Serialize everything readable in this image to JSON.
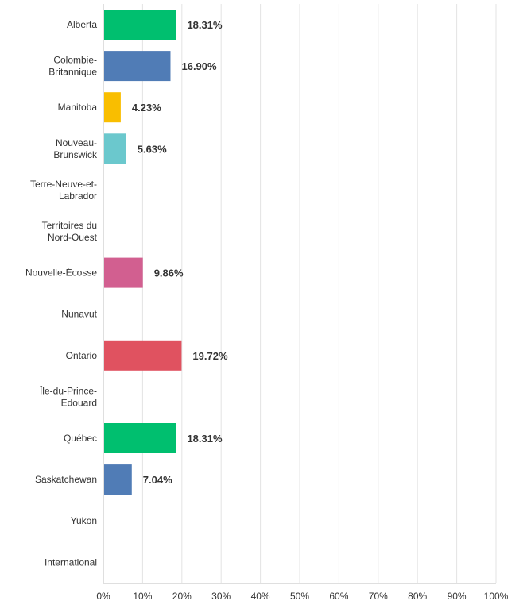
{
  "chart_data": {
    "type": "bar",
    "orientation": "horizontal",
    "categories": [
      "Alberta",
      "Colombie-\nBritannique",
      "Manitoba",
      "Nouveau-\nBrunswick",
      "Terre-Neuve-et-\nLabrador",
      "Territoires du\nNord-Ouest",
      "Nouvelle-Écosse",
      "Nunavut",
      "Ontario",
      "Île-du-Prince-\nÉdouard",
      "Québec",
      "Saskatchewan",
      "Yukon",
      "International"
    ],
    "values": [
      18.31,
      16.9,
      4.23,
      5.63,
      0,
      0,
      9.86,
      0,
      19.72,
      0,
      18.31,
      7.04,
      0,
      0
    ],
    "value_labels": [
      "18.31%",
      "16.90%",
      "4.23%",
      "5.63%",
      "",
      "",
      "9.86%",
      "",
      "19.72%",
      "",
      "18.31%",
      "7.04%",
      "",
      ""
    ],
    "colors": [
      "#00bf6f",
      "#507cb6",
      "#f9be00",
      "#6bc8cd",
      "#ff8b4f",
      "#7f7fff",
      "#d25f90",
      "#dee052",
      "#e05260",
      "#a07dbf",
      "#00bf6f",
      "#507cb6",
      "#f9be00",
      "#6bc8cd"
    ],
    "xlim": [
      0,
      100
    ],
    "xticks": [
      "0%",
      "10%",
      "20%",
      "30%",
      "40%",
      "50%",
      "60%",
      "70%",
      "80%",
      "90%",
      "100%"
    ],
    "xlabel": "",
    "ylabel": "",
    "title": "",
    "grid": true,
    "legend": "none"
  }
}
